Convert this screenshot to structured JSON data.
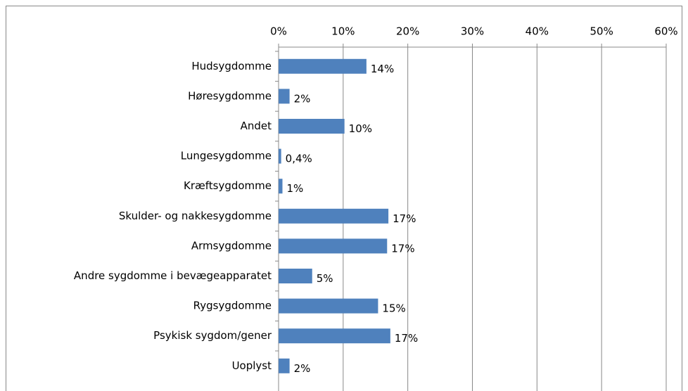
{
  "chart_data": {
    "type": "hbar",
    "categories": [
      "Hudsygdomme",
      "Høresygdomme",
      "Andet",
      "Lungesygdomme",
      "Kræftsygdomme",
      "Skulder- og nakkesygdomme",
      "Armsygdomme",
      "Andre sygdomme i bevægeapparatet",
      "Rygsygdomme",
      "Psykisk sygdom/gener",
      "Uoplyst"
    ],
    "values": [
      13.6,
      1.7,
      10.2,
      0.4,
      0.6,
      17.0,
      16.8,
      5.2,
      15.4,
      17.3,
      1.7
    ],
    "value_labels": [
      "14%",
      "2%",
      "10%",
      "0,4%",
      "1%",
      "17%",
      "17%",
      "5%",
      "15%",
      "17%",
      "2%"
    ],
    "color": "#4f81bd",
    "xlim": [
      0,
      60
    ],
    "xticks": [
      {
        "value": 0,
        "label": "0%"
      },
      {
        "value": 10,
        "label": "10%"
      },
      {
        "value": 20,
        "label": "20%"
      },
      {
        "value": 30,
        "label": "30%"
      },
      {
        "value": 40,
        "label": "40%"
      },
      {
        "value": 50,
        "label": "50%"
      },
      {
        "value": 60,
        "label": "60%"
      }
    ],
    "grid": true
  }
}
